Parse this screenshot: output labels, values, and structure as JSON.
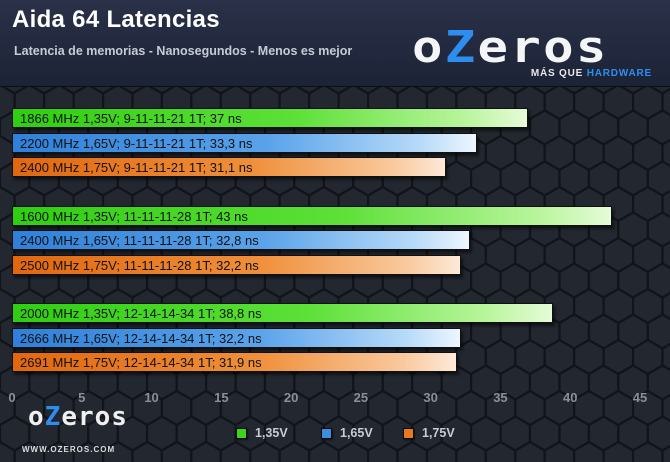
{
  "header": {
    "title": "Aida 64 Latencias",
    "subtitle": "Latencia de memorias - Nanosegundos - Menos es mejor"
  },
  "brand": {
    "logo_text_left": "o",
    "logo_text_z": "Z",
    "logo_text_right": "eros",
    "tagline_left": "MÁS QUE",
    "tagline_right": "HARDWARE",
    "footer_url": "WWW.OZEROS.COM",
    "footer_logo_left": "o",
    "footer_logo_z": "Z",
    "footer_logo_right": "eros"
  },
  "colors": {
    "green": "#3fd31f",
    "blue": "#3b8ee0",
    "orange": "#e8781e",
    "accent": "#2d8ef0"
  },
  "chart_data": {
    "type": "bar",
    "orientation": "horizontal",
    "xlim": [
      0,
      45
    ],
    "x_ticks": [
      "0",
      "5",
      "10",
      "15",
      "20",
      "25",
      "30",
      "35",
      "40",
      "45"
    ],
    "grid": false,
    "legend_position": "bottom",
    "legend": [
      "1,35V",
      "1,65V",
      "1,75V"
    ],
    "groups": [
      {
        "bars": [
          {
            "label": "1866 MHz  1,35V; 9-11-11-21 1T; 37 ns",
            "value": 37,
            "series": "1,35V"
          },
          {
            "label": "2200 MHz  1,65V; 9-11-11-21 1T; 33,3  ns",
            "value": 33.3,
            "series": "1,65V"
          },
          {
            "label": "2400 MHz  1,75V; 9-11-11-21 1T; 31,1 ns",
            "value": 31.1,
            "series": "1,75V"
          }
        ]
      },
      {
        "bars": [
          {
            "label": "1600 MHz  1,35V; 11-11-11-28 1T; 43  ns",
            "value": 43,
            "series": "1,35V"
          },
          {
            "label": "2400 MHz  1,65V; 11-11-11-28 1T; 32,8  ns",
            "value": 32.8,
            "series": "1,65V"
          },
          {
            "label": "2500 MHz  1,75V; 11-11-11-28 1T; 32,2  ns",
            "value": 32.2,
            "series": "1,75V"
          }
        ]
      },
      {
        "bars": [
          {
            "label": "2000 MHz  1,35V; 12-14-14-34 1T; 38,8  ns",
            "value": 38.8,
            "series": "1,35V"
          },
          {
            "label": "2666 MHz  1,65V; 12-14-14-34 1T; 32,2  ns",
            "value": 32.2,
            "series": "1,65V"
          },
          {
            "label": "2691 MHz  1,75V; 12-14-14-34 1T; 31,9  ns",
            "value": 31.9,
            "series": "1,75V"
          }
        ]
      }
    ]
  }
}
